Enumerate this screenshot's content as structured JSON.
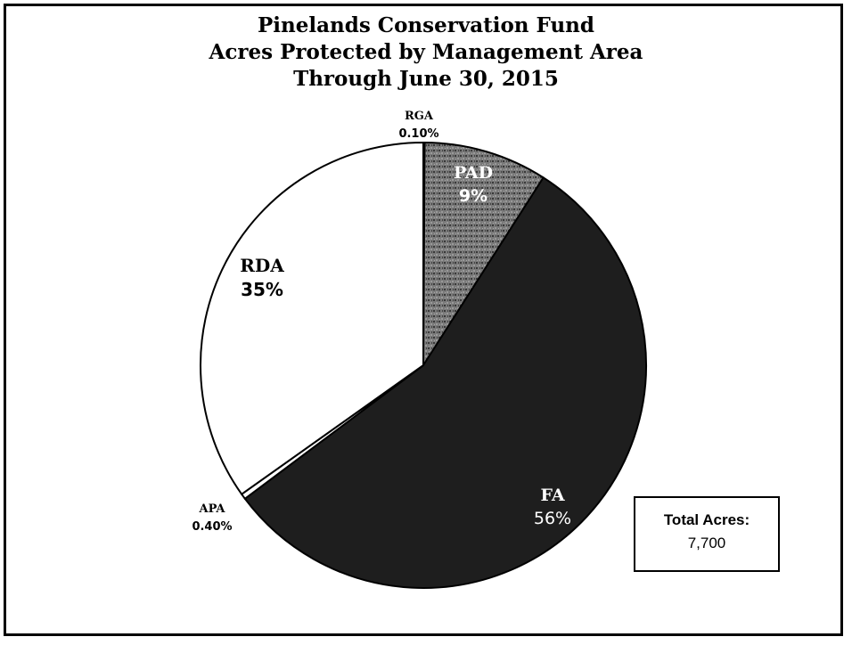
{
  "chart_data": {
    "type": "pie",
    "title": "Pinelands Conservation Fund",
    "subtitle_lines": [
      "Acres Protected by Management Area",
      "Through June 30, 2015"
    ],
    "slices": [
      {
        "label": "RGA",
        "percent_label": "0.10%",
        "value": 0.1,
        "color": "#ffffff"
      },
      {
        "label": "PAD",
        "percent_label": "9%",
        "value": 9,
        "color": "#777777"
      },
      {
        "label": "FA",
        "percent_label": "56%",
        "value": 56,
        "color": "#1e1e1e"
      },
      {
        "label": "APA",
        "percent_label": "0.40%",
        "value": 0.4,
        "color": "#ffffff"
      },
      {
        "label": "RDA",
        "percent_label": "35%",
        "value": 35,
        "color": "#ffffff"
      }
    ]
  },
  "total_box": {
    "label": "Total Acres:",
    "value": "7,700"
  }
}
